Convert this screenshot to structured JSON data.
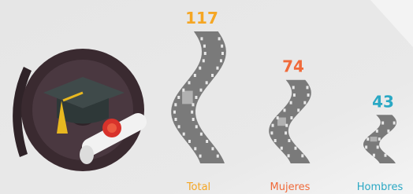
{
  "chart_data": {
    "type": "filmstrip",
    "categories": [
      "Total",
      "Mujeres",
      "Hombres"
    ],
    "values": [
      117,
      74,
      43
    ],
    "colors": [
      "#f5a623",
      "#f06a3a",
      "#2aa8c4"
    ],
    "strip_color": "#7a7a7a"
  }
}
